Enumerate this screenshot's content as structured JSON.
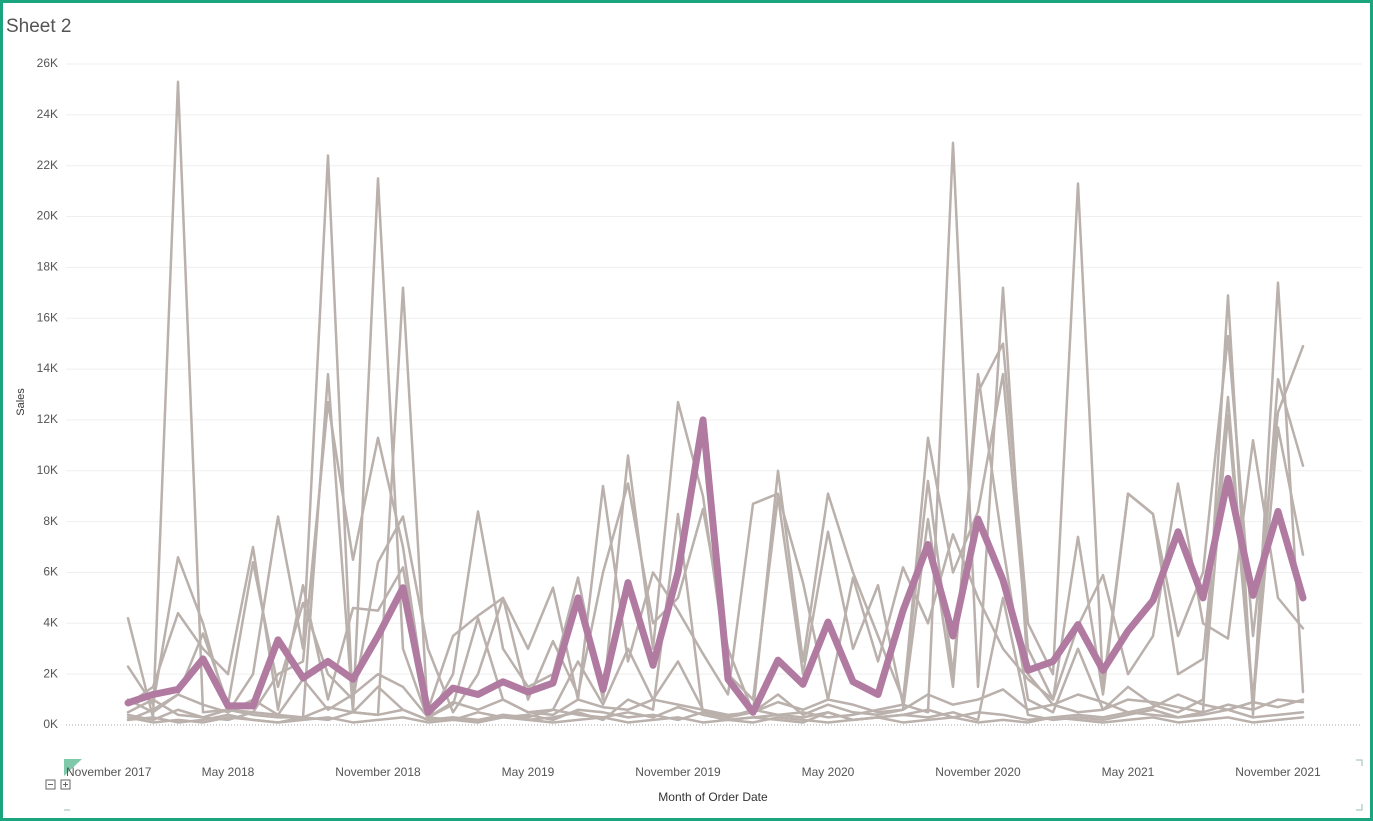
{
  "chart_data": {
    "type": "line",
    "title": "Sheet 2",
    "x_label": "Month of Order Date",
    "y_label": "Sales",
    "x": [
      "2018-01",
      "2018-02",
      "2018-03",
      "2018-04",
      "2018-05",
      "2018-06",
      "2018-07",
      "2018-08",
      "2018-09",
      "2018-10",
      "2018-11",
      "2018-12",
      "2019-01",
      "2019-02",
      "2019-03",
      "2019-04",
      "2019-05",
      "2019-06",
      "2019-07",
      "2019-08",
      "2019-09",
      "2019-10",
      "2019-11",
      "2019-12",
      "2020-01",
      "2020-02",
      "2020-03",
      "2020-04",
      "2020-05",
      "2020-06",
      "2020-07",
      "2020-08",
      "2020-09",
      "2020-10",
      "2020-11",
      "2020-12",
      "2021-01",
      "2021-02",
      "2021-03",
      "2021-04",
      "2021-05",
      "2021-06",
      "2021-07",
      "2021-08",
      "2021-09",
      "2021-10",
      "2021-11",
      "2021-12"
    ],
    "xticks": [
      {
        "value": "2017-11",
        "label": "November 2017"
      },
      {
        "value": "2018-05",
        "label": "May 2018"
      },
      {
        "value": "2018-11",
        "label": "November 2018"
      },
      {
        "value": "2019-05",
        "label": "May 2019"
      },
      {
        "value": "2019-11",
        "label": "November 2019"
      },
      {
        "value": "2020-05",
        "label": "May 2020"
      },
      {
        "value": "2020-11",
        "label": "November 2020"
      },
      {
        "value": "2021-05",
        "label": "May 2021"
      },
      {
        "value": "2021-11",
        "label": "November 2021"
      }
    ],
    "ylim": [
      0,
      26000
    ],
    "yticks": [
      {
        "value": 0,
        "label": "0K"
      },
      {
        "value": 2000,
        "label": "2K"
      },
      {
        "value": 4000,
        "label": "4K"
      },
      {
        "value": 6000,
        "label": "6K"
      },
      {
        "value": 8000,
        "label": "8K"
      },
      {
        "value": 10000,
        "label": "10K"
      },
      {
        "value": 12000,
        "label": "12K"
      },
      {
        "value": 14000,
        "label": "14K"
      },
      {
        "value": 16000,
        "label": "16K"
      },
      {
        "value": 18000,
        "label": "18K"
      },
      {
        "value": 20000,
        "label": "20K"
      },
      {
        "value": 22000,
        "label": "22K"
      },
      {
        "value": 24000,
        "label": "24K"
      },
      {
        "value": 26000,
        "label": "26K"
      }
    ],
    "grid": true,
    "series": [
      {
        "color": "#bab0ac",
        "values": [
          4200,
          300,
          25300,
          500,
          600,
          400,
          300,
          300,
          200,
          500,
          400,
          600,
          200,
          300,
          200,
          400,
          300,
          600,
          400,
          300,
          500,
          300,
          700,
          400,
          200,
          300,
          400,
          300,
          500,
          200,
          300,
          400,
          600,
          300,
          500,
          400,
          200,
          300,
          400,
          300,
          500,
          400,
          300,
          400,
          600,
          300,
          400,
          500
        ]
      },
      {
        "color": "#bab0ac",
        "values": [
          2300,
          800,
          6600,
          4000,
          500,
          2000,
          8200,
          3000,
          22400,
          500,
          21500,
          3000,
          200,
          2000,
          8400,
          3000,
          1500,
          2000,
          5800,
          1000,
          10600,
          3000,
          12700,
          9000,
          2000,
          1000,
          9000,
          2000,
          7600,
          3000,
          5500,
          800,
          11300,
          6000,
          8400,
          13800,
          3000,
          1000,
          7400,
          1200,
          9100,
          8300,
          2000,
          2600,
          12900,
          1000,
          13600,
          10200
        ]
      },
      {
        "color": "#bab0ac",
        "values": [
          400,
          200,
          600,
          300,
          200,
          500,
          400,
          300,
          700,
          500,
          400,
          17200,
          300,
          200,
          500,
          300,
          400,
          200,
          600,
          500,
          300,
          400,
          200,
          500,
          300,
          600,
          400,
          500,
          300,
          400,
          600,
          800,
          500,
          22900,
          1500,
          17200,
          2000,
          800,
          500,
          600,
          1000,
          900,
          700,
          500,
          800,
          600,
          1000,
          900
        ]
      },
      {
        "color": "#bab0ac",
        "values": [
          1000,
          500,
          1200,
          3600,
          800,
          6400,
          1500,
          4800,
          2000,
          1000,
          6400,
          8200,
          3000,
          500,
          2000,
          5000,
          1000,
          3300,
          1200,
          6000,
          9500,
          4000,
          5000,
          8500,
          3000,
          500,
          10000,
          2500,
          9100,
          6000,
          3500,
          1000,
          9600,
          2000,
          13100,
          15000,
          4000,
          2000,
          21300,
          1500,
          9100,
          8300,
          3500,
          6000,
          15300,
          3500,
          12300,
          14900
        ]
      },
      {
        "color": "#bab0ac",
        "values": [
          200,
          300,
          100,
          200,
          400,
          200,
          100,
          300,
          13800,
          500,
          1500,
          600,
          200,
          300,
          100,
          400,
          200,
          300,
          500,
          200,
          1000,
          600,
          8300,
          400,
          200,
          300,
          200,
          100,
          500,
          200,
          300,
          400,
          300,
          500,
          200,
          5000,
          400,
          200,
          300,
          200,
          400,
          600,
          300,
          500,
          16900,
          400,
          17400,
          1300
        ]
      },
      {
        "color": "#bab0ac",
        "values": [
          500,
          1000,
          400,
          300,
          600,
          500,
          2000,
          2500,
          12700,
          6500,
          11300,
          7000,
          300,
          800,
          4200,
          1000,
          500,
          600,
          2500,
          800,
          3000,
          1000,
          2500,
          600,
          300,
          500,
          1200,
          400,
          800,
          500,
          400,
          600,
          8100,
          1500,
          13800,
          7000,
          1000,
          500,
          3000,
          600,
          1500,
          800,
          500,
          1000,
          12200,
          800,
          11700,
          6700
        ]
      },
      {
        "color": "#bab0ac",
        "values": [
          300,
          100,
          200,
          100,
          300,
          200,
          100,
          200,
          300,
          100,
          200,
          300,
          100,
          200,
          100,
          300,
          200,
          100,
          200,
          300,
          100,
          200,
          300,
          100,
          200,
          100,
          300,
          200,
          100,
          200,
          300,
          100,
          200,
          300,
          100,
          200,
          100,
          300,
          200,
          100,
          200,
          300,
          100,
          200,
          300,
          100,
          200,
          300
        ]
      },
      {
        "color": "#bab0ac",
        "values": [
          800,
          1500,
          4400,
          3000,
          2000,
          7000,
          600,
          5500,
          1000,
          4600,
          4500,
          6200,
          600,
          3500,
          4300,
          5000,
          3000,
          5400,
          1000,
          9400,
          2500,
          6000,
          4500,
          2800,
          1200,
          8700,
          9100,
          5600,
          1000,
          5800,
          2500,
          6200,
          4000,
          7500,
          5000,
          3000,
          1800,
          1000,
          3900,
          5900,
          2000,
          3500,
          9500,
          4000,
          3400,
          11200,
          5000,
          3800
        ]
      },
      {
        "color": "#bab0ac",
        "values": [
          200,
          600,
          1200,
          800,
          500,
          1000,
          400,
          1800,
          600,
          1200,
          2000,
          1500,
          300,
          900,
          600,
          1000,
          500,
          400,
          1000,
          700,
          600,
          1000,
          800,
          600,
          400,
          500,
          900,
          600,
          1000,
          800,
          500,
          600,
          1200,
          800,
          1000,
          1400,
          600,
          800,
          1200,
          900,
          500,
          700,
          1200,
          800,
          600,
          900,
          700,
          1000
        ]
      },
      {
        "color": "#b07aa1",
        "values": [
          870,
          1200,
          1400,
          2600,
          750,
          750,
          3350,
          1850,
          2500,
          1800,
          3500,
          5400,
          500,
          1450,
          1200,
          1700,
          1300,
          1650,
          5000,
          1400,
          5600,
          2350,
          6000,
          12000,
          1800,
          500,
          2550,
          1600,
          4050,
          1700,
          1200,
          4500,
          7100,
          3500,
          8100,
          5700,
          2150,
          2500,
          3950,
          2150,
          3700,
          4900,
          7600,
          5000,
          9700,
          5100,
          8400,
          5000
        ]
      }
    ]
  }
}
